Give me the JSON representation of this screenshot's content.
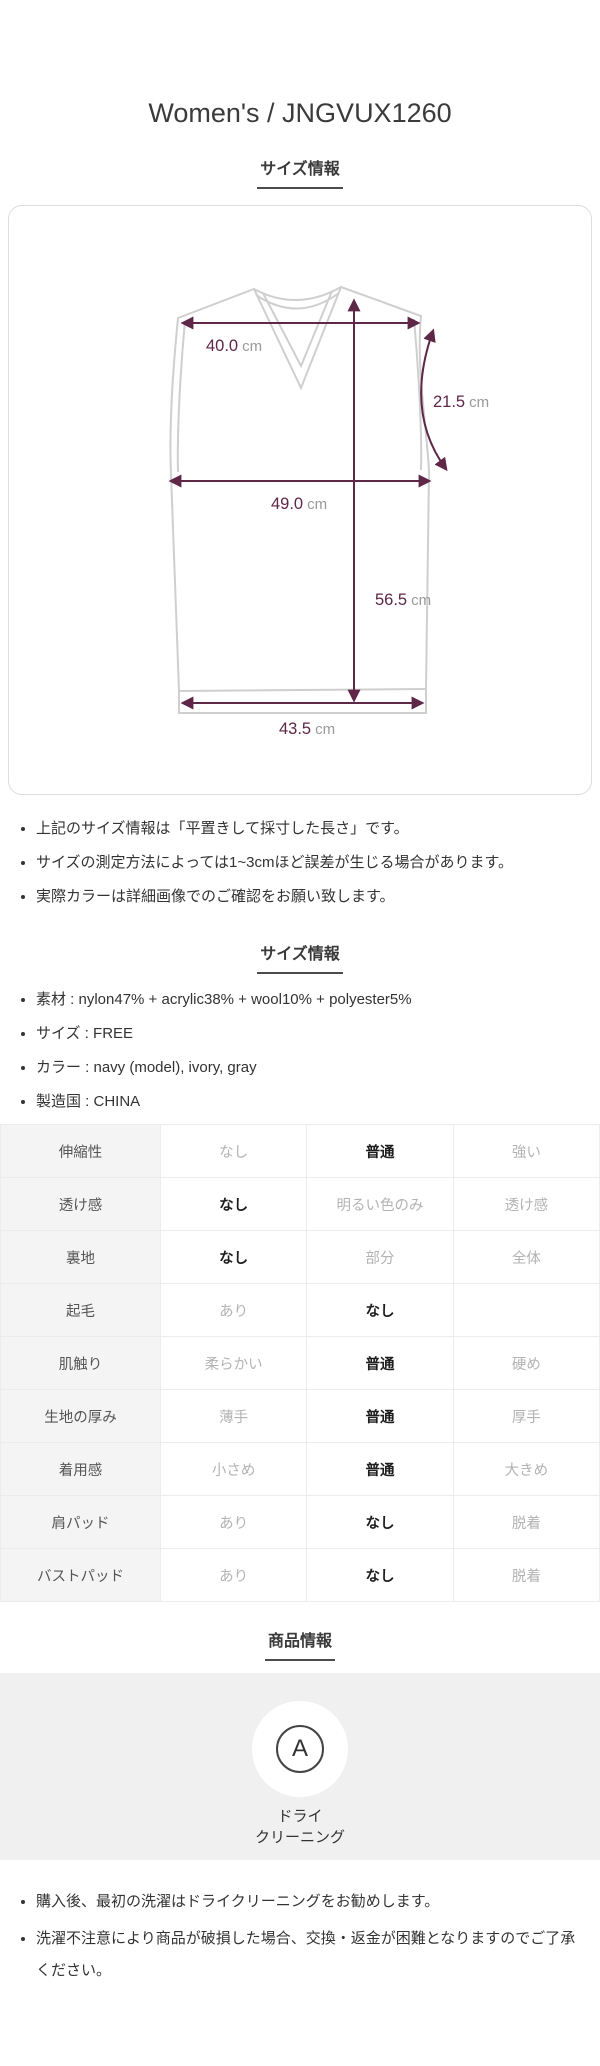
{
  "page": {
    "title": "Women's / JNGVUX1260"
  },
  "size_diagram": {
    "header": "サイズ情報",
    "measurements": {
      "shoulder_width": {
        "value": "40.0",
        "unit": "cm"
      },
      "armhole": {
        "value": "21.5",
        "unit": "cm"
      },
      "chest_width": {
        "value": "49.0",
        "unit": "cm"
      },
      "length": {
        "value": "56.5",
        "unit": "cm"
      },
      "hem_width": {
        "value": "43.5",
        "unit": "cm"
      }
    },
    "notes": [
      "上記のサイズ情報は「平置きして採寸した長さ」です。",
      "サイズの測定方法によっては1~3cmほど誤差が生じる場合があります。",
      "実際カラーは詳細画像でのご確認をお願い致します。"
    ]
  },
  "spec_section": {
    "header": "サイズ情報",
    "items": [
      "素材 : nylon47% + acrylic38% + wool10% + polyester5%",
      "サイズ : FREE",
      "カラー : navy (model), ivory, gray",
      "製造国 : CHINA"
    ]
  },
  "attribute_table": {
    "rows": [
      {
        "label": "伸縮性",
        "options": [
          {
            "text": "なし",
            "selected": false
          },
          {
            "text": "普通",
            "selected": true
          },
          {
            "text": "強い",
            "selected": false
          }
        ]
      },
      {
        "label": "透け感",
        "options": [
          {
            "text": "なし",
            "selected": true
          },
          {
            "text": "明るい色のみ",
            "selected": false
          },
          {
            "text": "透け感",
            "selected": false
          }
        ]
      },
      {
        "label": "裏地",
        "options": [
          {
            "text": "なし",
            "selected": true
          },
          {
            "text": "部分",
            "selected": false
          },
          {
            "text": "全体",
            "selected": false
          }
        ]
      },
      {
        "label": "起毛",
        "options": [
          {
            "text": "あり",
            "selected": false
          },
          {
            "text": "なし",
            "selected": true
          },
          {
            "text": "",
            "selected": false
          }
        ]
      },
      {
        "label": "肌触り",
        "options": [
          {
            "text": "柔らかい",
            "selected": false
          },
          {
            "text": "普通",
            "selected": true
          },
          {
            "text": "硬め",
            "selected": false
          }
        ]
      },
      {
        "label": "生地の厚み",
        "options": [
          {
            "text": "薄手",
            "selected": false
          },
          {
            "text": "普通",
            "selected": true
          },
          {
            "text": "厚手",
            "selected": false
          }
        ]
      },
      {
        "label": "着用感",
        "options": [
          {
            "text": "小さめ",
            "selected": false
          },
          {
            "text": "普通",
            "selected": true
          },
          {
            "text": "大きめ",
            "selected": false
          }
        ]
      },
      {
        "label": "肩パッド",
        "options": [
          {
            "text": "あり",
            "selected": false
          },
          {
            "text": "なし",
            "selected": true
          },
          {
            "text": "脱着",
            "selected": false
          }
        ]
      },
      {
        "label": "バストパッド",
        "options": [
          {
            "text": "あり",
            "selected": false
          },
          {
            "text": "なし",
            "selected": true
          },
          {
            "text": "脱着",
            "selected": false
          }
        ]
      }
    ]
  },
  "product_section": {
    "header": "商品情報",
    "care_symbol": {
      "letter": "A",
      "label_line1": "ドライ",
      "label_line2": "クリーニング"
    },
    "notes": [
      "購入後、最初の洗濯はドライクリーニングをお勧めします。",
      "洗濯不注意により商品が破損した場合、交換・返金が困難となりますのでご了承ください。"
    ]
  },
  "colors": {
    "measurement_line": "#5e2647",
    "garment_outline": "#cfcfcf",
    "unit_text": "#9a9a9a"
  }
}
